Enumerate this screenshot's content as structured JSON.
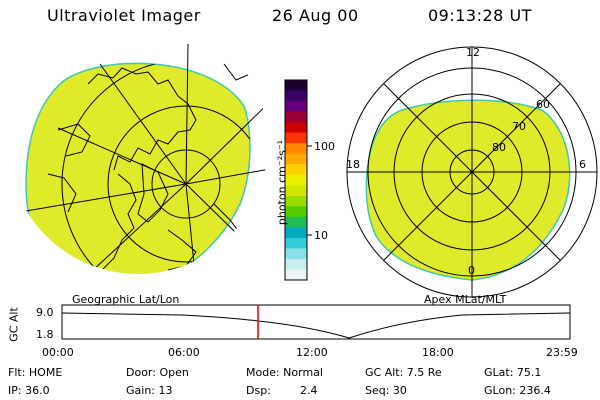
{
  "header": {
    "title": "Ultraviolet Imager",
    "date": "26 Aug 00",
    "time": "09:13:28 UT"
  },
  "colorbar": {
    "unit_label": "photon cm⁻²s⁻¹",
    "tick_labels": [
      "100",
      "10"
    ],
    "colors": [
      "#1a0030",
      "#3b0066",
      "#66007a",
      "#990033",
      "#cc0000",
      "#ff3300",
      "#ff8800",
      "#ffaa00",
      "#ffd000",
      "#eeee00",
      "#cfe800",
      "#99dd00",
      "#55cc00",
      "#22bb55",
      "#00aabb",
      "#33ccdd",
      "#88e0e8",
      "#c8eef0",
      "#e8f4f6"
    ]
  },
  "left_map": {
    "caption": "Geographic Lat/Lon",
    "fill_color": "#dfea2a"
  },
  "right_map": {
    "caption": "Apex MLat/MLT",
    "labels": {
      "top": "12",
      "left": "18",
      "right": "6",
      "bottom": "0",
      "lat60": "60",
      "lat70": "70",
      "lat80": "80"
    },
    "fill_color": "#dfea2a"
  },
  "altitude_plot": {
    "ylabel": "GC Alt",
    "ytick_top": "9.0",
    "ytick_bottom": "1.8",
    "xticks": [
      "00:00",
      "06:00",
      "12:00",
      "18:00",
      "23:59"
    ],
    "marker_color": "#dd0000"
  },
  "info": {
    "flt": "Flt: HOME",
    "ip": "IP: 36.0",
    "door": "Door: Open",
    "gain": "Gain: 13",
    "mode": "Mode: Normal",
    "dsp_label": "Dsp:",
    "dsp_value": "2.4",
    "gc_alt": "GC Alt: 7.5 Re",
    "seq": "Seq: 30",
    "glat": "GLat:  75.1",
    "glon": "GLon: 236.4"
  }
}
